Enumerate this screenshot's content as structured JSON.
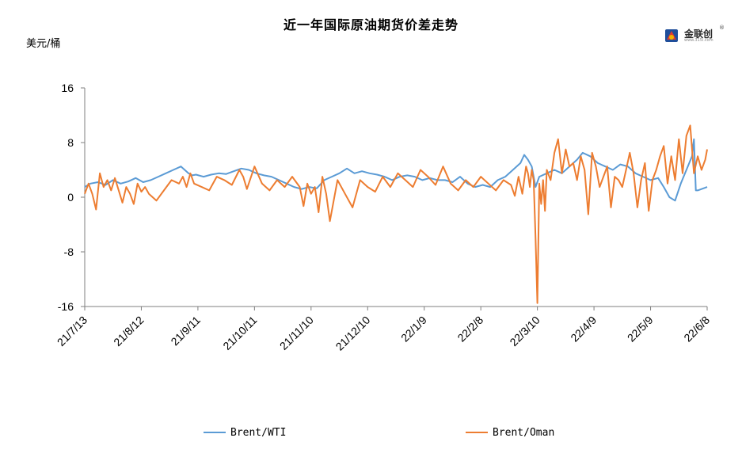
{
  "title": "近一年国际原油期货价差走势",
  "unit_label": "美元/桶",
  "logo": {
    "name": "金联创",
    "reg": "®",
    "url": "www.315i.com"
  },
  "colors": {
    "brent_wti": "#5b9bd5",
    "brent_oman": "#ed7d31",
    "axis": "#7f7f7f"
  },
  "chart_data": {
    "type": "line",
    "title": "近一年国际原油期货价差走势",
    "ylabel": "美元/桶",
    "ylim": [
      -16,
      16
    ],
    "yticks": [
      16,
      8,
      0,
      -8,
      -16
    ],
    "yticklabels": [
      "16",
      "8",
      "0",
      "-8",
      "-16"
    ],
    "xlim": [
      "2021-07-13",
      "2022-06-08"
    ],
    "xticks": [
      "2021-07-13",
      "2021-08-12",
      "2021-09-11",
      "2021-10-11",
      "2021-11-10",
      "2021-12-10",
      "2022-01-09",
      "2022-02-08",
      "2022-03-10",
      "2022-04-09",
      "2022-05-09",
      "2022-06-08"
    ],
    "xticklabels": [
      "21/7/13",
      "21/8/12",
      "21/9/11",
      "21/10/11",
      "21/11/10",
      "21/12/10",
      "22/1/9",
      "22/2/8",
      "22/3/10",
      "22/4/9",
      "22/5/9",
      "22/6/8"
    ],
    "grid": false,
    "legend_position": "bottom",
    "series": [
      {
        "name": "Brent/WTI",
        "color": "#5b9bd5",
        "x": [
          "2021-07-13",
          "2021-07-16",
          "2021-07-20",
          "2021-07-24",
          "2021-07-28",
          "2021-08-01",
          "2021-08-05",
          "2021-08-09",
          "2021-08-13",
          "2021-08-17",
          "2021-08-21",
          "2021-08-25",
          "2021-08-29",
          "2021-09-02",
          "2021-09-06",
          "2021-09-08",
          "2021-09-10",
          "2021-09-14",
          "2021-09-18",
          "2021-09-22",
          "2021-09-26",
          "2021-09-30",
          "2021-10-04",
          "2021-10-08",
          "2021-10-12",
          "2021-10-16",
          "2021-10-20",
          "2021-10-24",
          "2021-10-28",
          "2021-11-01",
          "2021-11-05",
          "2021-11-09",
          "2021-11-13",
          "2021-11-17",
          "2021-11-21",
          "2021-11-25",
          "2021-11-29",
          "2021-12-03",
          "2021-12-07",
          "2021-12-11",
          "2021-12-15",
          "2021-12-19",
          "2021-12-23",
          "2021-12-27",
          "2021-12-31",
          "2022-01-04",
          "2022-01-08",
          "2022-01-12",
          "2022-01-16",
          "2022-01-20",
          "2022-01-24",
          "2022-01-28",
          "2022-02-01",
          "2022-02-05",
          "2022-02-09",
          "2022-02-13",
          "2022-02-17",
          "2022-02-21",
          "2022-02-25",
          "2022-03-01",
          "2022-03-03",
          "2022-03-05",
          "2022-03-07",
          "2022-03-09",
          "2022-03-11",
          "2022-03-15",
          "2022-03-19",
          "2022-03-23",
          "2022-03-27",
          "2022-03-31",
          "2022-04-03",
          "2022-04-07",
          "2022-04-11",
          "2022-04-15",
          "2022-04-19",
          "2022-04-23",
          "2022-04-27",
          "2022-05-01",
          "2022-05-05",
          "2022-05-09",
          "2022-05-13",
          "2022-05-16",
          "2022-05-19",
          "2022-05-22",
          "2022-05-25",
          "2022-05-28",
          "2022-05-31",
          "2022-06-01",
          "2022-06-02",
          "2022-06-03",
          "2022-06-05",
          "2022-06-08"
        ],
        "y": [
          1.5,
          2.0,
          2.2,
          1.8,
          2.5,
          2.0,
          2.3,
          2.8,
          2.2,
          2.5,
          3.0,
          3.5,
          4.0,
          4.5,
          3.5,
          3.2,
          3.3,
          3.0,
          3.3,
          3.5,
          3.4,
          3.8,
          4.2,
          4.0,
          3.5,
          3.2,
          3.0,
          2.5,
          2.0,
          1.5,
          1.2,
          1.5,
          1.3,
          2.5,
          3.0,
          3.5,
          4.2,
          3.5,
          3.8,
          3.5,
          3.3,
          3.0,
          2.5,
          3.0,
          3.2,
          3.0,
          2.5,
          2.8,
          2.5,
          2.5,
          2.2,
          3.0,
          2.0,
          1.5,
          1.8,
          1.5,
          2.5,
          3.0,
          4.0,
          5.0,
          6.2,
          5.5,
          4.5,
          1.5,
          3.0,
          3.5,
          4.0,
          3.5,
          4.5,
          5.5,
          6.5,
          6.0,
          5.0,
          4.5,
          4.0,
          4.8,
          4.5,
          3.5,
          3.0,
          2.5,
          2.8,
          1.5,
          0.0,
          -0.5,
          2.0,
          4.0,
          6.0,
          8.5,
          1.0,
          1.0,
          1.2,
          1.5
        ]
      },
      {
        "name": "Brent/Oman",
        "color": "#ed7d31",
        "x": [
          "2021-07-13",
          "2021-07-15",
          "2021-07-17",
          "2021-07-19",
          "2021-07-21",
          "2021-07-23",
          "2021-07-25",
          "2021-07-27",
          "2021-07-29",
          "2021-07-31",
          "2021-08-02",
          "2021-08-04",
          "2021-08-06",
          "2021-08-08",
          "2021-08-10",
          "2021-08-12",
          "2021-08-14",
          "2021-08-16",
          "2021-08-20",
          "2021-08-24",
          "2021-08-28",
          "2021-09-01",
          "2021-09-03",
          "2021-09-05",
          "2021-09-07",
          "2021-09-09",
          "2021-09-13",
          "2021-09-17",
          "2021-09-21",
          "2021-09-25",
          "2021-09-29",
          "2021-10-03",
          "2021-10-05",
          "2021-10-07",
          "2021-10-11",
          "2021-10-15",
          "2021-10-19",
          "2021-10-23",
          "2021-10-27",
          "2021-10-31",
          "2021-11-04",
          "2021-11-06",
          "2021-11-08",
          "2021-11-10",
          "2021-11-12",
          "2021-11-14",
          "2021-11-16",
          "2021-11-18",
          "2021-11-20",
          "2021-11-24",
          "2021-11-28",
          "2021-12-02",
          "2021-12-06",
          "2021-12-10",
          "2021-12-14",
          "2021-12-18",
          "2021-12-22",
          "2021-12-26",
          "2021-12-30",
          "2022-01-03",
          "2022-01-07",
          "2022-01-11",
          "2022-01-15",
          "2022-01-19",
          "2022-01-23",
          "2022-01-27",
          "2022-01-31",
          "2022-02-04",
          "2022-02-08",
          "2022-02-12",
          "2022-02-16",
          "2022-02-20",
          "2022-02-24",
          "2022-02-26",
          "2022-02-28",
          "2022-03-02",
          "2022-03-04",
          "2022-03-05",
          "2022-03-06",
          "2022-03-07",
          "2022-03-08",
          "2022-03-09",
          "2022-03-10",
          "2022-03-11",
          "2022-03-12",
          "2022-03-13",
          "2022-03-14",
          "2022-03-15",
          "2022-03-17",
          "2022-03-19",
          "2022-03-21",
          "2022-03-23",
          "2022-03-25",
          "2022-03-27",
          "2022-03-29",
          "2022-03-31",
          "2022-04-02",
          "2022-04-04",
          "2022-04-06",
          "2022-04-08",
          "2022-04-10",
          "2022-04-12",
          "2022-04-14",
          "2022-04-16",
          "2022-04-18",
          "2022-04-20",
          "2022-04-22",
          "2022-04-24",
          "2022-04-26",
          "2022-04-28",
          "2022-04-30",
          "2022-05-02",
          "2022-05-04",
          "2022-05-06",
          "2022-05-08",
          "2022-05-10",
          "2022-05-12",
          "2022-05-14",
          "2022-05-16",
          "2022-05-18",
          "2022-05-20",
          "2022-05-22",
          "2022-05-24",
          "2022-05-26",
          "2022-05-28",
          "2022-05-30",
          "2022-06-01",
          "2022-06-03",
          "2022-06-05",
          "2022-06-07",
          "2022-06-08"
        ],
        "y": [
          0.5,
          2.0,
          0.5,
          -1.8,
          3.5,
          1.5,
          2.5,
          1.0,
          2.8,
          1.0,
          -0.8,
          1.5,
          0.5,
          -1.0,
          2.0,
          0.8,
          1.5,
          0.5,
          -0.5,
          1.0,
          2.5,
          2.0,
          3.0,
          1.5,
          3.5,
          2.0,
          1.5,
          1.0,
          3.0,
          2.5,
          1.8,
          4.0,
          3.0,
          1.2,
          4.5,
          2.0,
          1.0,
          2.5,
          1.5,
          3.0,
          1.5,
          -1.3,
          2.0,
          0.5,
          1.5,
          -2.2,
          3.0,
          0.5,
          -3.5,
          2.5,
          0.5,
          -1.5,
          2.5,
          1.5,
          0.8,
          3.0,
          1.5,
          3.5,
          2.5,
          1.5,
          4.0,
          3.0,
          1.8,
          4.5,
          2.0,
          1.0,
          2.5,
          1.5,
          3.0,
          2.0,
          1.0,
          2.5,
          1.8,
          0.2,
          3.0,
          0.5,
          4.5,
          3.5,
          1.5,
          4.0,
          2.5,
          -6.0,
          -15.5,
          2.0,
          -1.0,
          2.5,
          -2.0,
          4.0,
          2.5,
          6.5,
          8.5,
          3.5,
          7.0,
          4.5,
          5.0,
          2.5,
          6.0,
          4.0,
          -2.5,
          6.5,
          4.5,
          1.5,
          3.0,
          4.5,
          -1.5,
          3.0,
          2.5,
          1.5,
          4.0,
          6.5,
          3.5,
          -1.5,
          2.5,
          5.0,
          -2.0,
          2.5,
          4.0,
          6.0,
          7.5,
          2.0,
          6.0,
          2.5,
          8.5,
          3.5,
          9.0,
          10.5,
          3.5,
          6.0,
          4.0,
          5.5,
          7.0
        ]
      }
    ]
  }
}
